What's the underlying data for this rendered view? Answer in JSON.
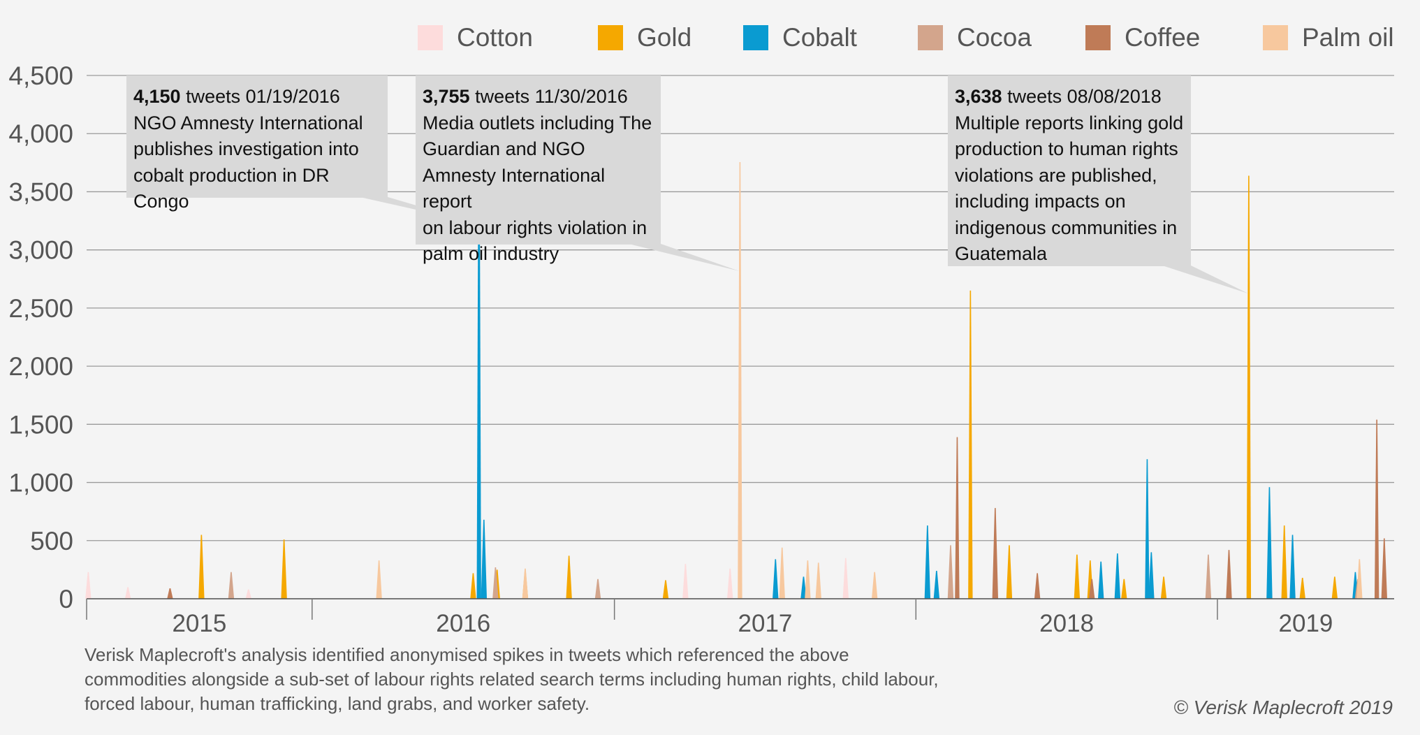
{
  "chart_data": {
    "type": "area",
    "title": "",
    "xlabel": "",
    "ylabel": "",
    "ylim": [
      0,
      4500
    ],
    "xlim": [
      "2014-10-01",
      "2019-01-31"
    ],
    "yticks": [
      0,
      500,
      1000,
      1500,
      2000,
      2500,
      3000,
      3500,
      4000,
      4500
    ],
    "ytick_labels": [
      "0",
      "500",
      "1,000",
      "1,500",
      "2,000",
      "2,500",
      "3,000",
      "3,500",
      "4,000",
      "4,500"
    ],
    "xtick_labels": [
      "2015",
      "2016",
      "2017",
      "2018",
      "2019"
    ],
    "year_boundaries": [
      "2015-07-01",
      "2016-07-01",
      "2017-07-01",
      "2018-07-01"
    ],
    "grid": true,
    "legend_position": "top",
    "series": [
      {
        "name": "Cotton",
        "color": "#fddcdc",
        "points": [
          [
            "2014-10-03",
            230
          ],
          [
            "2014-11-20",
            100
          ],
          [
            "2015-01-10",
            90
          ],
          [
            "2015-04-15",
            80
          ],
          [
            "2016-09-25",
            300
          ],
          [
            "2016-11-18",
            260
          ],
          [
            "2017-04-07",
            350
          ],
          [
            "2018-02-10",
            60
          ]
        ]
      },
      {
        "name": "Gold",
        "color": "#f5a800",
        "points": [
          [
            "2015-02-17",
            550
          ],
          [
            "2015-05-28",
            510
          ],
          [
            "2016-01-12",
            220
          ],
          [
            "2016-02-10",
            250
          ],
          [
            "2016-03-15",
            240
          ],
          [
            "2016-05-07",
            370
          ],
          [
            "2016-09-01",
            160
          ],
          [
            "2017-09-05",
            2650
          ],
          [
            "2017-10-22",
            460
          ],
          [
            "2018-01-12",
            380
          ],
          [
            "2018-01-28",
            330
          ],
          [
            "2018-03-10",
            170
          ],
          [
            "2018-04-12",
            210
          ],
          [
            "2018-04-27",
            190
          ],
          [
            "2018-08-08",
            3638
          ],
          [
            "2018-09-20",
            630
          ],
          [
            "2018-10-12",
            180
          ],
          [
            "2018-11-20",
            190
          ]
        ]
      },
      {
        "name": "Cobalt",
        "color": "#0a9bd1",
        "points": [
          [
            "2016-01-19",
            4150
          ],
          [
            "2016-01-25",
            680
          ],
          [
            "2017-01-12",
            340
          ],
          [
            "2017-02-15",
            190
          ],
          [
            "2017-07-15",
            630
          ],
          [
            "2017-07-26",
            240
          ],
          [
            "2018-02-10",
            320
          ],
          [
            "2018-03-02",
            390
          ],
          [
            "2018-04-07",
            1200
          ],
          [
            "2018-04-12",
            400
          ],
          [
            "2018-09-02",
            960
          ],
          [
            "2018-09-30",
            550
          ],
          [
            "2018-12-15",
            230
          ]
        ]
      },
      {
        "name": "Cocoa",
        "color": "#d3a58c",
        "points": [
          [
            "2015-03-25",
            230
          ],
          [
            "2016-02-08",
            270
          ],
          [
            "2016-06-11",
            170
          ],
          [
            "2017-08-12",
            460
          ],
          [
            "2018-06-20",
            380
          ],
          [
            "2018-12-18",
            170
          ]
        ]
      },
      {
        "name": "Coffee",
        "color": "#bf7b57",
        "points": [
          [
            "2015-01-10",
            90
          ],
          [
            "2017-08-20",
            1390
          ],
          [
            "2017-10-05",
            780
          ],
          [
            "2017-11-25",
            220
          ],
          [
            "2018-01-30",
            170
          ],
          [
            "2018-07-15",
            420
          ],
          [
            "2019-01-10",
            1540
          ],
          [
            "2019-01-19",
            520
          ]
        ]
      },
      {
        "name": "Palm oil",
        "color": "#f7c89e",
        "points": [
          [
            "2015-09-20",
            330
          ],
          [
            "2016-03-15",
            260
          ],
          [
            "2016-11-30",
            3755
          ],
          [
            "2017-01-20",
            440
          ],
          [
            "2017-02-20",
            330
          ],
          [
            "2017-03-05",
            310
          ],
          [
            "2017-05-12",
            230
          ],
          [
            "2018-12-20",
            340
          ]
        ]
      }
    ],
    "annotations": [
      {
        "number": "4,150",
        "rest": " tweets 01/19/2016",
        "lines": [
          "NGO Amnesty International",
          "publishes investigation into",
          "cobalt production in DR  Congo"
        ],
        "date": "2016-01-19",
        "value": 4150
      },
      {
        "number": "3,755",
        "rest": " tweets 11/30/2016",
        "lines": [
          "Media outlets including The",
          "Guardian and NGO",
          "Amnesty International report",
          "on labour rights violation in",
          "palm oil industry"
        ],
        "date": "2016-11-30",
        "value": 3755
      },
      {
        "number": "3,638",
        "rest": " tweets 08/08/2018",
        "lines": [
          "Multiple reports linking gold",
          "production to human rights",
          "violations are published,",
          "including impacts on",
          "indigenous communities in",
          "Guatemala"
        ],
        "date": "2018-08-08",
        "value": 3638
      }
    ]
  },
  "footnote": "Verisk Maplecroft's analysis identified anonymised spikes in tweets which referenced the above commodities alongside a sub-set of labour rights related search terms including human rights, child labour, forced labour, human trafficking, land grabs, and worker safety.",
  "copyright": "© Verisk Maplecroft 2019"
}
